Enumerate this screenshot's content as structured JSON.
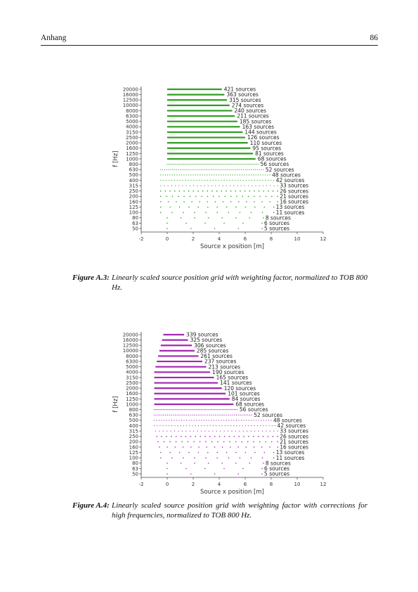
{
  "header": {
    "running_head": "Anhang",
    "page_number": "86"
  },
  "figures": [
    {
      "caption_label": "Figure A.3:",
      "caption_text": "Linearly scaled source position grid with weighting factor, normalized to TOB 800 Hz.",
      "chart_data": {
        "type": "scatter",
        "xlabel": "Source x position [m]",
        "ylabel": "f [Hz]",
        "xlim": [
          -2,
          12
        ],
        "x_ticks": [
          "-2",
          "0",
          "2",
          "4",
          "6",
          "8",
          "10",
          "12"
        ],
        "categories": [
          "20000",
          "16000",
          "12500",
          "10000",
          "8000",
          "6300",
          "5000",
          "4000",
          "3150",
          "2500",
          "2000",
          "1600",
          "1250",
          "1000",
          "800",
          "630",
          "500",
          "400",
          "315",
          "250",
          "200",
          "160",
          "125",
          "100",
          "80",
          "63",
          "50"
        ],
        "source_counts": [
          421,
          363,
          315,
          274,
          240,
          211,
          185,
          163,
          144,
          126,
          110,
          95,
          81,
          68,
          56,
          52,
          48,
          42,
          33,
          26,
          21,
          16,
          13,
          11,
          8,
          6,
          5
        ],
        "x_min": [
          0,
          0,
          0,
          0,
          0,
          0,
          0,
          0,
          0,
          0,
          0,
          0,
          0,
          0,
          0,
          -0.5,
          -0.5,
          -0.5,
          -0.5,
          -0.5,
          -0.5,
          -0.5,
          -0.5,
          -0.5,
          0,
          0,
          0
        ],
        "x_max": [
          4.2,
          4.4,
          4.6,
          4.8,
          5,
          5.2,
          5.4,
          5.6,
          5.8,
          6,
          6.2,
          6.4,
          6.6,
          6.8,
          7,
          7.4,
          7.9,
          8.2,
          8.5,
          8.5,
          8.5,
          8.5,
          8.2,
          8.2,
          7.4,
          7.3,
          7.3
        ],
        "labels": [
          "421 sources",
          "363 sources",
          "315 sources",
          "274 sources",
          "240 sources",
          "211 sources",
          "185 sources",
          "163 sources",
          "144 sources",
          "126 sources",
          "110 sources",
          "95 sources",
          "81 sources",
          "68 sources",
          "56 sources",
          "52 sources",
          "48 sources",
          "42 sources",
          "33 sources",
          "26 sources",
          "21 sources",
          "16 sources",
          "13 sources",
          "11 sources",
          "8 sources",
          "6 sources",
          "5 sources"
        ],
        "color": "#2e9e1f"
      }
    },
    {
      "caption_label": "Figure A.4:",
      "caption_text": "Linearly scaled source position grid with weighting factor with corrections for high frequencies, normalized to TOB 800 Hz.",
      "chart_data": {
        "type": "scatter",
        "xlabel": "Source x position [m]",
        "ylabel": "f [Hz]",
        "xlim": [
          -2,
          12
        ],
        "x_ticks": [
          "-2",
          "0",
          "2",
          "4",
          "6",
          "8",
          "10",
          "12"
        ],
        "categories": [
          "20000",
          "16000",
          "12500",
          "10000",
          "8000",
          "6300",
          "5000",
          "4000",
          "3150",
          "2500",
          "2000",
          "1600",
          "1250",
          "1000",
          "800",
          "630",
          "500",
          "400",
          "315",
          "250",
          "200",
          "160",
          "125",
          "100",
          "80",
          "63",
          "50"
        ],
        "source_counts": [
          339,
          325,
          306,
          285,
          261,
          237,
          213,
          190,
          165,
          141,
          120,
          101,
          84,
          68,
          56,
          52,
          48,
          42,
          33,
          26,
          21,
          16,
          13,
          11,
          8,
          6,
          5
        ],
        "x_min": [
          -0.3,
          -0.4,
          -0.5,
          -0.6,
          -0.7,
          -0.8,
          -0.9,
          -1,
          -1,
          -1,
          -1,
          -1,
          -1,
          -1,
          -1,
          -1,
          -1,
          -1,
          -0.9,
          -0.8,
          -0.7,
          -0.6,
          -0.5,
          -0.5,
          0,
          0,
          0
        ],
        "x_max": [
          1.3,
          1.6,
          1.9,
          2.1,
          2.4,
          2.7,
          3,
          3.3,
          3.6,
          3.9,
          4.2,
          4.5,
          4.8,
          5.1,
          5.4,
          6.5,
          8,
          8.3,
          8.5,
          8.5,
          8.5,
          8.5,
          8.2,
          8.2,
          7.4,
          7.3,
          7.3
        ],
        "labels": [
          "339 sources",
          "325 sources",
          "306 sources",
          "285 sources",
          "261 sources",
          "237 sources",
          "213 sources",
          "190 sources",
          "165 sources",
          "141 sources",
          "120 sources",
          "101 sources",
          "84 sources",
          "68 sources",
          "56 sources",
          "52 sources",
          "48 sources",
          "42 sources",
          "33 sources",
          "26 sources",
          "21 sources",
          "16 sources",
          "13 sources",
          "11 sources",
          "8 sources",
          "6 sources",
          "5 sources"
        ],
        "color": "#a327b3"
      }
    }
  ]
}
